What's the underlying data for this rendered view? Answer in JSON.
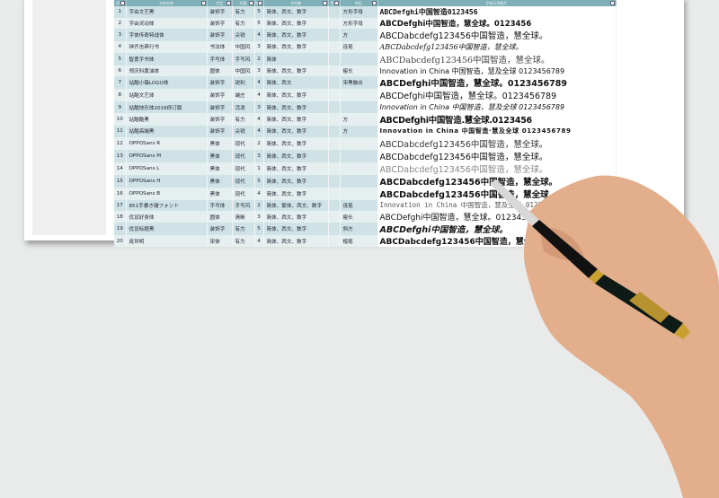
{
  "columns": [
    "序号",
    "字体名称",
    "字型",
    "风格",
    "粗细",
    "字符集",
    "免费",
    "特征",
    "字体示例图片"
  ],
  "rows": [
    [
      "1",
      "字由文艺黑",
      "装饰字",
      "有力",
      "5",
      "简体、西文、数字",
      "",
      "方形字母",
      "ABCDefghi中国智造0123456"
    ],
    [
      "2",
      "字由灵动体",
      "装饰字",
      "有力",
      "5",
      "简体、西文、数字",
      "",
      "方形字母",
      "ABCDefghi中国智造，慧全球。0123456"
    ],
    [
      "3",
      "字体传奇特战体",
      "装饰字",
      "尖锐",
      "4",
      "简体、西文、数字",
      "",
      "方",
      "ABCDabcdefg123456中国智造，慧全球。"
    ],
    [
      "4",
      "钟齐志莽行书",
      "书法体",
      "中国风",
      "3",
      "简体、西文、数字",
      "",
      "连笔",
      "ABCDabcdefg123456中国智造，慧全球。"
    ],
    [
      "5",
      "智勇手书体",
      "手写体",
      "手写风",
      "2",
      "简体",
      "",
      "",
      "ABCDabcdefg123456中国智造，慧全球。"
    ],
    [
      "6",
      "郑庆科黄油体",
      "圆体",
      "中国风",
      "3",
      "简体、西文、数字",
      "",
      "瘦长",
      "Innovation in China 中国智造，慧及全球 0123456789"
    ],
    [
      "7",
      "站酷小薇LOGO体",
      "装饰字",
      "锐利",
      "4",
      "简体、西文",
      "",
      "宋黑融合",
      "ABCDefghi中国智造，慧全球。0123456789"
    ],
    [
      "8",
      "站酷文艺体",
      "装饰字",
      "端庄",
      "4",
      "简体、西文、数字",
      "",
      "",
      "ABCDefghi中国智造，慧全球。0123456789"
    ],
    [
      "9",
      "站酷快乐体2016修订版",
      "装饰字",
      "活泼",
      "3",
      "简体、西文、数字",
      "",
      "",
      "Innovation in China 中国智造，慧及全球 0123456789"
    ],
    [
      "10",
      "站酷酷黑",
      "装饰字",
      "有力",
      "4",
      "简体、西文、数字",
      "",
      "方",
      "ABCDefghi中国智造.慧全球.0123456"
    ],
    [
      "11",
      "站酷高端黑",
      "装饰字",
      "尖锐",
      "4",
      "简体、西文、数字",
      "",
      "方",
      "Innovation in China 中国智造·慧及全球 0123456789"
    ],
    [
      "12",
      "OPPOSans R",
      "黑体",
      "现代",
      "2",
      "简体、西文、数字",
      "",
      "",
      "ABCDabcdefg123456中国智造，慧全球。"
    ],
    [
      "13",
      "OPPOSans M",
      "黑体",
      "现代",
      "3",
      "简体、西文、数字",
      "",
      "",
      "ABCDabcdefg123456中国智造，慧全球。"
    ],
    [
      "14",
      "OPPOSans L",
      "黑体",
      "现代",
      "1",
      "简体、西文、数字",
      "",
      "",
      "ABCDabcdefg123456中国智造，慧全球。"
    ],
    [
      "15",
      "OPPOSans H",
      "黑体",
      "现代",
      "5",
      "简体、西文、数字",
      "",
      "",
      "ABCDabcdefg123456中国智造，慧全球。"
    ],
    [
      "16",
      "OPPOSans B",
      "黑体",
      "现代",
      "4",
      "简体、西文、数字",
      "",
      "",
      "ABCDabcdefg123456中国智造，慧全球。"
    ],
    [
      "17",
      "851手書き雑フォント",
      "手写体",
      "手写风",
      "2",
      "简体、繁体、西文、数字",
      "",
      "连笔",
      "Innovation in China 中国智造，慧及全球 0123456789"
    ],
    [
      "18",
      "优设好身体",
      "圆体",
      "清晰",
      "3",
      "简体、西文、数字",
      "",
      "瘦长",
      "ABCDefghi中国智造，慧全球。0123456"
    ],
    [
      "19",
      "优设标题黑",
      "装饰字",
      "有力",
      "5",
      "简体、西文、数字",
      "",
      "斜方",
      "ABCDefghi中国智造，慧全球。"
    ],
    [
      "20",
      "庞世明",
      "宋体",
      "有力",
      "4",
      "简体、西文、数字",
      "",
      "楷笔",
      "ABCDabcdefg123456中国智造，慧全球。"
    ]
  ],
  "colors": {
    "header": "#7fb0b8",
    "row_a": "#cfe3e6",
    "row_b": "#e5eff0",
    "background": "#e9eaea"
  }
}
